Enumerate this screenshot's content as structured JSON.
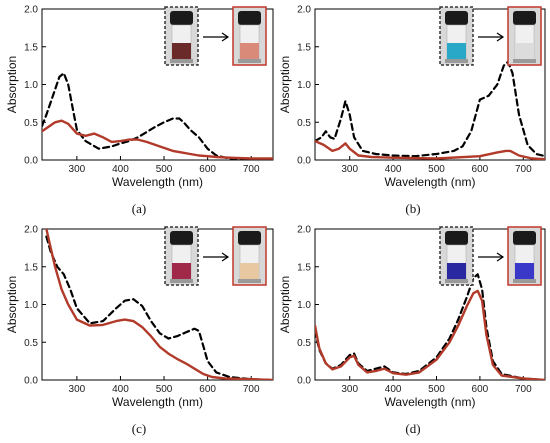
{
  "chart_data": [
    {
      "type": "line",
      "panel_label": "(a)",
      "xlabel": "Wavelength (nm)",
      "ylabel": "Absorption",
      "xlim": [
        220,
        750
      ],
      "ylim": [
        0,
        2.0
      ],
      "xticks": [
        300,
        400,
        500,
        600,
        700
      ],
      "xtick_labels": [
        "300",
        "400",
        "500",
        "600",
        "700"
      ],
      "yticks": [
        0,
        0.5,
        1.0,
        1.5,
        2.0
      ],
      "ytick_labels": [
        "0.0",
        "0.5",
        "1.0",
        "1.5",
        "2.0"
      ],
      "inset": {
        "before_color": "#6a2a2a",
        "after_color": "#d98a78"
      },
      "series": [
        {
          "style": "dashed",
          "color": "#000000",
          "x": [
            220,
            230,
            245,
            260,
            270,
            280,
            290,
            300,
            320,
            350,
            380,
            400,
            420,
            440,
            460,
            480,
            500,
            520,
            535,
            545,
            560,
            580,
            600,
            620,
            650,
            700,
            750
          ],
          "y": [
            0.45,
            0.6,
            0.85,
            1.1,
            1.15,
            1.0,
            0.7,
            0.4,
            0.25,
            0.15,
            0.18,
            0.22,
            0.25,
            0.3,
            0.37,
            0.44,
            0.5,
            0.55,
            0.55,
            0.5,
            0.4,
            0.3,
            0.15,
            0.06,
            0.02,
            0.01,
            0.0
          ]
        },
        {
          "style": "solid",
          "color": "#b23a2a",
          "x": [
            220,
            230,
            250,
            265,
            280,
            300,
            320,
            340,
            360,
            380,
            400,
            420,
            440,
            460,
            480,
            500,
            520,
            540,
            560,
            580,
            600,
            620,
            650,
            700,
            750
          ],
          "y": [
            0.38,
            0.42,
            0.5,
            0.52,
            0.48,
            0.35,
            0.32,
            0.35,
            0.3,
            0.24,
            0.25,
            0.27,
            0.27,
            0.24,
            0.2,
            0.16,
            0.12,
            0.1,
            0.08,
            0.06,
            0.05,
            0.04,
            0.03,
            0.02,
            0.02
          ]
        }
      ]
    },
    {
      "type": "line",
      "panel_label": "(b)",
      "xlabel": "Wavelength (nm)",
      "ylabel": "Absorption",
      "xlim": [
        220,
        750
      ],
      "ylim": [
        0,
        2.0
      ],
      "xticks": [
        300,
        400,
        500,
        600,
        700
      ],
      "xtick_labels": [
        "300",
        "400",
        "500",
        "600",
        "700"
      ],
      "yticks": [
        0,
        0.5,
        1.0,
        1.5,
        2.0
      ],
      "ytick_labels": [
        "0.0",
        "0.5",
        "1.0",
        "1.5",
        "2.0"
      ],
      "inset": {
        "before_color": "#2aa8c8",
        "after_color": "#dcdcdc"
      },
      "series": [
        {
          "style": "dashed",
          "color": "#000000",
          "x": [
            220,
            235,
            245,
            255,
            265,
            280,
            290,
            300,
            310,
            330,
            360,
            400,
            450,
            500,
            540,
            560,
            580,
            600,
            620,
            640,
            655,
            665,
            675,
            690,
            710,
            730,
            750
          ],
          "y": [
            0.25,
            0.3,
            0.38,
            0.3,
            0.28,
            0.55,
            0.78,
            0.6,
            0.3,
            0.12,
            0.08,
            0.06,
            0.05,
            0.08,
            0.12,
            0.18,
            0.38,
            0.8,
            0.85,
            1.0,
            1.25,
            1.3,
            1.15,
            0.6,
            0.2,
            0.08,
            0.05
          ]
        },
        {
          "style": "solid",
          "color": "#b23a2a",
          "x": [
            220,
            240,
            260,
            275,
            290,
            300,
            320,
            350,
            400,
            500,
            600,
            640,
            660,
            670,
            690,
            720,
            750
          ],
          "y": [
            0.25,
            0.2,
            0.12,
            0.15,
            0.22,
            0.15,
            0.06,
            0.04,
            0.03,
            0.02,
            0.05,
            0.1,
            0.12,
            0.12,
            0.06,
            0.02,
            0.01
          ]
        }
      ]
    },
    {
      "type": "line",
      "panel_label": "(c)",
      "xlabel": "Wavelength (nm)",
      "ylabel": "Absorption",
      "xlim": [
        220,
        750
      ],
      "ylim": [
        0,
        2.0
      ],
      "xticks": [
        300,
        400,
        500,
        600,
        700
      ],
      "xtick_labels": [
        "300",
        "400",
        "500",
        "600",
        "700"
      ],
      "yticks": [
        0,
        0.5,
        1.0,
        1.5,
        2.0
      ],
      "ytick_labels": [
        "0.0",
        "0.5",
        "1.0",
        "1.5",
        "2.0"
      ],
      "inset": {
        "before_color": "#a02848",
        "after_color": "#e8c8a0"
      },
      "series": [
        {
          "style": "dashed",
          "color": "#000000",
          "x": [
            230,
            240,
            255,
            270,
            285,
            300,
            330,
            360,
            390,
            410,
            430,
            450,
            470,
            490,
            510,
            530,
            550,
            570,
            580,
            590,
            600,
            620,
            650,
            700,
            750
          ],
          "y": [
            1.9,
            1.7,
            1.5,
            1.4,
            1.2,
            0.95,
            0.75,
            0.78,
            0.95,
            1.05,
            1.07,
            0.98,
            0.78,
            0.62,
            0.55,
            0.58,
            0.63,
            0.68,
            0.65,
            0.45,
            0.25,
            0.1,
            0.04,
            0.01,
            0.0
          ]
        },
        {
          "style": "solid",
          "color": "#b23a2a",
          "x": [
            230,
            240,
            250,
            265,
            280,
            300,
            330,
            360,
            390,
            410,
            430,
            450,
            470,
            490,
            510,
            530,
            550,
            570,
            590,
            610,
            640,
            700,
            750
          ],
          "y": [
            2.0,
            1.75,
            1.5,
            1.2,
            1.0,
            0.8,
            0.72,
            0.73,
            0.78,
            0.8,
            0.78,
            0.7,
            0.58,
            0.44,
            0.35,
            0.28,
            0.22,
            0.15,
            0.08,
            0.04,
            0.02,
            0.01,
            0.0
          ]
        }
      ]
    },
    {
      "type": "line",
      "panel_label": "(d)",
      "xlabel": "Wavelength (nm)",
      "ylabel": "Absorption",
      "xlim": [
        220,
        750
      ],
      "ylim": [
        0,
        2.0
      ],
      "xticks": [
        300,
        400,
        500,
        600,
        700
      ],
      "xtick_labels": [
        "300",
        "400",
        "500",
        "600",
        "700"
      ],
      "yticks": [
        0,
        0.5,
        1.0,
        1.5,
        2.0
      ],
      "ytick_labels": [
        "0.0",
        "0.5",
        "1.0",
        "1.5",
        "2.0"
      ],
      "inset": {
        "before_color": "#2a28a0",
        "after_color": "#3a38c8"
      },
      "series": [
        {
          "style": "dashed",
          "color": "#000000",
          "x": [
            220,
            230,
            245,
            260,
            280,
            300,
            310,
            320,
            340,
            360,
            380,
            400,
            430,
            460,
            500,
            530,
            550,
            570,
            585,
            595,
            605,
            615,
            630,
            650,
            700,
            750
          ],
          "y": [
            0.65,
            0.4,
            0.22,
            0.15,
            0.2,
            0.33,
            0.35,
            0.22,
            0.12,
            0.15,
            0.18,
            0.1,
            0.08,
            0.12,
            0.3,
            0.55,
            0.8,
            1.1,
            1.35,
            1.4,
            1.2,
            0.7,
            0.25,
            0.08,
            0.02,
            0.0
          ]
        },
        {
          "style": "solid",
          "color": "#b23a2a",
          "x": [
            220,
            230,
            245,
            260,
            280,
            300,
            310,
            320,
            340,
            360,
            380,
            400,
            430,
            460,
            500,
            530,
            550,
            570,
            585,
            595,
            605,
            615,
            630,
            650,
            700,
            750
          ],
          "y": [
            0.72,
            0.42,
            0.22,
            0.14,
            0.18,
            0.3,
            0.32,
            0.2,
            0.1,
            0.12,
            0.15,
            0.09,
            0.07,
            0.1,
            0.27,
            0.5,
            0.72,
            0.98,
            1.15,
            1.18,
            1.05,
            0.6,
            0.2,
            0.06,
            0.02,
            0.0
          ]
        }
      ]
    }
  ]
}
